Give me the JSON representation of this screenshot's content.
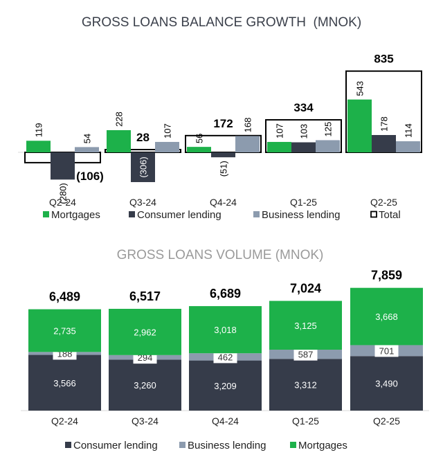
{
  "colors": {
    "mortgages": "#1DB14A",
    "consumer": "#363C4A",
    "business": "#8C9BAE",
    "title": "#3A3F4A",
    "subtitle": "#9A9A9A"
  },
  "chart_data": [
    {
      "type": "bar",
      "title": "GROSS LOANS BALANCE GROWTH  (MNOK)",
      "categories": [
        "Q2-24",
        "Q3-24",
        "Q4-24",
        "Q1-25",
        "Q2-25"
      ],
      "series": [
        {
          "name": "Mortgages",
          "values": [
            119,
            228,
            56,
            107,
            543
          ],
          "labels": [
            "119",
            "228",
            "56",
            "107",
            "543"
          ]
        },
        {
          "name": "Consumer lending",
          "values": [
            -280,
            -306,
            -51,
            103,
            178
          ],
          "labels": [
            "(280)",
            "(306)",
            "(51)",
            "103",
            "178"
          ]
        },
        {
          "name": "Business lending",
          "values": [
            54,
            107,
            168,
            125,
            114
          ],
          "labels": [
            "54",
            "107",
            "168",
            "125",
            "114"
          ]
        }
      ],
      "total": {
        "name": "Total",
        "values": [
          -106,
          28,
          172,
          334,
          835
        ],
        "labels": [
          "(106)",
          "28",
          "172",
          "334",
          "835"
        ]
      },
      "legend": [
        "Mortgages",
        "Consumer lending",
        "Business lending",
        "Total"
      ]
    },
    {
      "type": "bar",
      "stacked": true,
      "title": "GROSS LOANS VOLUME (MNOK)",
      "categories": [
        "Q2-24",
        "Q3-24",
        "Q4-24",
        "Q1-25",
        "Q2-25"
      ],
      "series": [
        {
          "name": "Consumer lending",
          "values": [
            3566,
            3260,
            3209,
            3312,
            3490
          ],
          "labels": [
            "3,566",
            "3,260",
            "3,209",
            "3,312",
            "3,490"
          ]
        },
        {
          "name": "Business lending",
          "values": [
            188,
            294,
            462,
            587,
            701
          ],
          "labels": [
            "188",
            "294",
            "462",
            "587",
            "701"
          ]
        },
        {
          "name": "Mortgages",
          "values": [
            2735,
            2962,
            3018,
            3125,
            3668
          ],
          "labels": [
            "2,735",
            "2,962",
            "3,018",
            "3,125",
            "3,668"
          ]
        }
      ],
      "totals": [
        6489,
        6517,
        6689,
        7024,
        7859
      ],
      "total_labels": [
        "6,489",
        "6,517",
        "6,689",
        "7,024",
        "7,859"
      ],
      "legend": [
        "Consumer lending",
        "Business lending",
        "Mortgages"
      ]
    }
  ]
}
